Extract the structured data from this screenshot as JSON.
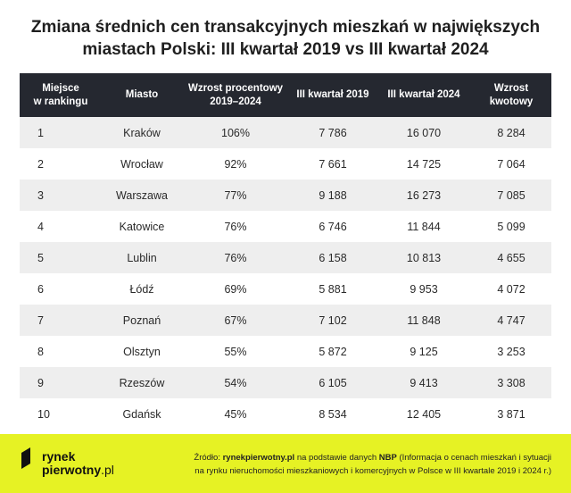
{
  "chart_data": {
    "type": "table",
    "title_line1": "Zmiana średnich cen transakcyjnych mieszkań w największych",
    "title_line2": "miastach Polski: III kwartał 2019 vs III kwartał 2024",
    "columns": [
      "Miejsce w rankingu",
      "Miasto",
      "Wzrost procentowy 2019–2024",
      "III kwartał 2019",
      "III kwartał 2024",
      "Wzrost kwotowy"
    ],
    "rows": [
      [
        "1",
        "Kraków",
        "106%",
        "7 786",
        "16 070",
        "8 284"
      ],
      [
        "2",
        "Wrocław",
        "92%",
        "7 661",
        "14 725",
        "7 064"
      ],
      [
        "3",
        "Warszawa",
        "77%",
        "9 188",
        "16 273",
        "7 085"
      ],
      [
        "4",
        "Katowice",
        "76%",
        "6 746",
        "11 844",
        "5 099"
      ],
      [
        "5",
        "Lublin",
        "76%",
        "6 158",
        "10 813",
        "4 655"
      ],
      [
        "6",
        "Łódź",
        "69%",
        "5 881",
        "9 953",
        "4 072"
      ],
      [
        "7",
        "Poznań",
        "67%",
        "7 102",
        "11 848",
        "4 747"
      ],
      [
        "8",
        "Olsztyn",
        "55%",
        "5 872",
        "9 125",
        "3 253"
      ],
      [
        "9",
        "Rzeszów",
        "54%",
        "6 105",
        "9 413",
        "3 308"
      ],
      [
        "10",
        "Gdańsk",
        "45%",
        "8 534",
        "12 405",
        "3 871"
      ]
    ]
  },
  "header": {
    "col1_line1": "Miejsce",
    "col1_line2": "w rankingu",
    "col3_line1": "Wzrost procentowy",
    "col3_line2": "2019–2024"
  },
  "footer": {
    "logo_line1": "rynek",
    "logo_line2": "pierwotny",
    "logo_tld": ".pl",
    "source_prefix": "Źródło: ",
    "source_site": "rynekpierwotny.pl",
    "source_mid": " na podstawie danych ",
    "source_nbp": "NBP",
    "source_rest1": " (Informacja o cenach mieszkań i sytuacji",
    "source_line2": "na rynku nieruchomości mieszkaniowych i komercyjnych w Polsce w III kwartale 2019 i 2024 r.)"
  },
  "colors": {
    "header_bg": "#252830",
    "accent_yellow": "#e6f224",
    "row_stripe": "#eeeeee"
  }
}
